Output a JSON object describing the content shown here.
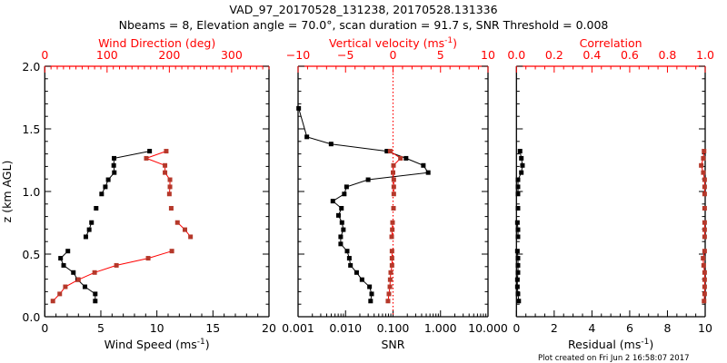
{
  "title_line1": "VAD_97_20170528_131238, 20170528.131336",
  "title_line2": "Nbeams = 8, Elevation angle = 70.0°, scan duration = 91.7 s, SNR Threshold = 0.008",
  "footer": "Plot created on Fri Jun  2 16:58:07 2017",
  "colors": {
    "primary": "#000000",
    "secondary_line": "#ff0000",
    "secondary_marker": "#b5382a"
  },
  "chart_data": {
    "type": "line",
    "yaxis": {
      "label": "z (km AGL)",
      "range": [
        0,
        2.0
      ],
      "ticks": [
        0,
        0.5,
        1.0,
        1.5,
        2.0
      ],
      "tick_labels": [
        "0.0",
        "0.5",
        "1.0",
        "1.5",
        "2.0"
      ]
    },
    "heights_km": [
      0.125,
      0.182,
      0.239,
      0.296,
      0.353,
      0.41,
      0.467,
      0.524,
      0.581,
      0.638,
      0.695,
      0.752,
      0.809,
      0.866,
      0.923,
      0.98,
      1.037,
      1.094,
      1.151,
      1.208,
      1.265,
      1.322,
      1.379,
      1.436,
      1.664
    ],
    "panels": [
      {
        "bottom_axis": {
          "label": "Wind Speed (ms",
          "label_sup": "-1",
          "label_end": ")",
          "scale": "linear",
          "range": [
            0,
            20
          ],
          "ticks": [
            0,
            5,
            10,
            15,
            20
          ],
          "tick_labels": [
            "0",
            "5",
            "10",
            "15",
            "20"
          ]
        },
        "top_axis": {
          "label": "Wind Direction (deg)",
          "scale": "linear",
          "range": [
            0,
            360
          ],
          "ticks": [
            0,
            100,
            200,
            300
          ],
          "tick_labels": [
            "0",
            "100",
            "200",
            "300"
          ]
        },
        "series": [
          {
            "name": "Wind Speed",
            "axis": "bottom",
            "color": "#000000",
            "values": [
              4.5,
              4.5,
              3.58,
              2.93,
              2.55,
              1.68,
              1.41,
              2.06,
              null,
              3.66,
              3.96,
              4.17,
              null,
              4.58,
              null,
              5.07,
              5.4,
              5.66,
              6.2,
              6.15,
              6.18,
              9.35,
              null,
              null,
              null
            ]
          },
          {
            "name": "Wind Direction",
            "axis": "top",
            "color": "#ff0000",
            "values": [
              13,
              24,
              33,
              54,
              80,
              115,
              166,
              204,
              null,
              234,
              225,
              213,
              null,
              203,
              null,
              200,
              201,
              201,
              193,
              193,
              163,
              195,
              null,
              null,
              null
            ]
          }
        ]
      },
      {
        "bottom_axis": {
          "label": "SNR",
          "scale": "log",
          "range": [
            0.001,
            10
          ],
          "ticks": [
            0.001,
            0.01,
            0.1,
            1,
            10
          ],
          "tick_labels": [
            "0.001",
            "0.010",
            "0.100",
            "1.000",
            "10.000"
          ]
        },
        "top_axis": {
          "label": "Vertical velocity (ms",
          "label_sup": "-1",
          "label_end": ")",
          "scale": "linear",
          "range": [
            -10,
            10
          ],
          "ticks": [
            -10,
            -5,
            0,
            5,
            10
          ],
          "tick_labels": [
            "−10",
            "−5",
            "0",
            "5",
            "10"
          ]
        },
        "reference_line": {
          "axis": "top",
          "value": 0,
          "style": "dotted"
        },
        "series": [
          {
            "name": "SNR",
            "axis": "bottom",
            "color": "#000000",
            "values": [
              0.0337,
              0.0355,
              0.032,
              0.0222,
              0.0171,
              0.0127,
              0.012,
              0.0108,
              0.0079,
              0.0079,
              0.009,
              0.0084,
              0.0071,
              0.0082,
              0.0054,
              0.0094,
              0.0105,
              0.0299,
              0.55,
              0.435,
              0.188,
              0.0743,
              0.00496,
              0.00153,
              0.00103
            ]
          },
          {
            "name": "Vertical velocity",
            "axis": "top",
            "color": "#ff0000",
            "values": [
              -0.53,
              -0.43,
              -0.33,
              -0.3,
              -0.24,
              -0.11,
              -0.11,
              -0.11,
              null,
              -0.14,
              -0.08,
              -0.05,
              null,
              0.05,
              null,
              0.08,
              0.08,
              0.08,
              0.0,
              0.05,
              0.78,
              -0.3,
              null,
              null,
              null
            ]
          }
        ]
      },
      {
        "bottom_axis": {
          "label": "Residual (ms",
          "label_sup": "-1",
          "label_end": ")",
          "scale": "linear",
          "range": [
            0,
            10
          ],
          "ticks": [
            0,
            2,
            4,
            6,
            8,
            10
          ],
          "tick_labels": [
            "0",
            "2",
            "4",
            "6",
            "8",
            "10"
          ]
        },
        "top_axis": {
          "label": "Correlation",
          "scale": "linear",
          "range": [
            0,
            1.0
          ],
          "ticks": [
            0,
            0.2,
            0.4,
            0.6,
            0.8,
            1.0
          ],
          "tick_labels": [
            "0.0",
            "0.2",
            "0.4",
            "0.6",
            "0.8",
            "1.0"
          ]
        },
        "series": [
          {
            "name": "Residual",
            "axis": "bottom",
            "color": "#000000",
            "values": [
              0.12,
              0.08,
              0.05,
              0.05,
              0.08,
              0.08,
              0.08,
              0.05,
              null,
              0.08,
              0.08,
              0.05,
              null,
              0.08,
              null,
              0.08,
              0.08,
              0.08,
              0.26,
              0.32,
              0.26,
              0.19,
              null,
              null,
              null
            ]
          },
          {
            "name": "Correlation",
            "axis": "top",
            "color": "#ff0000",
            "values": [
              0.994,
              0.997,
              0.997,
              0.997,
              0.997,
              0.992,
              0.989,
              0.997,
              null,
              0.997,
              0.997,
              0.997,
              null,
              0.997,
              null,
              0.997,
              0.997,
              0.997,
              0.99,
              0.979,
              0.99,
              0.994,
              null,
              null,
              null
            ]
          }
        ]
      }
    ]
  }
}
